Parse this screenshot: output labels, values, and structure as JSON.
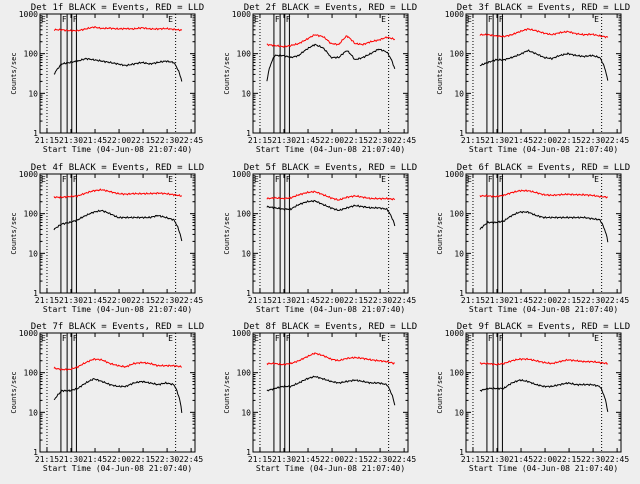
{
  "colors": {
    "background": "#eeeeee",
    "events": "#000000",
    "lld": "#ff0000",
    "axes": "#000000"
  },
  "chart_data": {
    "type": "line",
    "scale": "log",
    "ylim": [
      1,
      1000
    ],
    "y_ticks": [
      "1",
      "10",
      "100",
      "1000"
    ],
    "ylabel": "Counts/sec",
    "xlabel": "Start Time (04-Jun-08 21:07:40)",
    "x_ticks": [
      "21:15",
      "21:30",
      "21:45",
      "22:00",
      "22:15",
      "22:30",
      "22:45"
    ],
    "panels": [
      {
        "title": "Det 1f BLACK = Events, RED = LLD",
        "markers": [
          "E",
          "F",
          "F",
          "E"
        ],
        "lld": {
          "values": [
            400,
            400,
            380,
            380,
            420,
            470,
            430,
            440,
            420,
            430,
            420,
            450,
            420,
            420,
            430,
            410,
            390
          ]
        },
        "events": {
          "values": [
            30,
            55,
            60,
            65,
            75,
            70,
            65,
            60,
            55,
            50,
            55,
            60,
            55,
            60,
            65,
            60,
            20
          ]
        }
      },
      {
        "title": "Det 2f BLACK = Events, RED = LLD",
        "markers": [
          "E",
          "F",
          "F",
          "E"
        ],
        "lld": {
          "values": [
            170,
            160,
            150,
            160,
            180,
            230,
            300,
            270,
            180,
            170,
            280,
            180,
            170,
            200,
            220,
            260,
            230
          ]
        },
        "events": {
          "values": [
            20,
            90,
            90,
            80,
            90,
            130,
            170,
            140,
            80,
            80,
            120,
            70,
            80,
            100,
            130,
            110,
            40
          ]
        }
      },
      {
        "title": "Det 3f BLACK = Events, RED = LLD",
        "markers": [
          "E",
          "F",
          "F",
          "E"
        ],
        "lld": {
          "values": [
            300,
            300,
            280,
            270,
            300,
            360,
            420,
            380,
            330,
            300,
            340,
            360,
            320,
            300,
            310,
            280,
            260
          ]
        },
        "events": {
          "values": [
            50,
            60,
            70,
            70,
            80,
            95,
            120,
            100,
            80,
            75,
            90,
            100,
            90,
            85,
            90,
            80,
            20
          ]
        }
      },
      {
        "title": "Det 4f BLACK = Events, RED = LLD",
        "markers": [
          "E",
          "F",
          "F",
          "E"
        ],
        "lld": {
          "values": [
            260,
            260,
            270,
            280,
            330,
            380,
            400,
            360,
            320,
            310,
            320,
            320,
            320,
            330,
            320,
            300,
            280
          ]
        },
        "events": {
          "values": [
            40,
            55,
            60,
            70,
            90,
            110,
            120,
            100,
            80,
            80,
            80,
            80,
            80,
            90,
            80,
            70,
            20
          ]
        }
      },
      {
        "title": "Det 5f BLACK = Events, RED = LLD",
        "markers": [
          "E",
          "F",
          "F",
          "E"
        ],
        "lld": {
          "values": [
            240,
            250,
            240,
            250,
            300,
            340,
            360,
            300,
            250,
            220,
            260,
            280,
            260,
            240,
            240,
            240,
            230
          ]
        },
        "events": {
          "values": [
            150,
            140,
            130,
            130,
            170,
            200,
            210,
            170,
            140,
            120,
            140,
            160,
            150,
            140,
            140,
            130,
            50
          ]
        }
      },
      {
        "title": "Det 6f BLACK = Events, RED = LLD",
        "markers": [
          "E",
          "F",
          "F",
          "E"
        ],
        "lld": {
          "values": [
            280,
            280,
            270,
            290,
            340,
            380,
            380,
            340,
            300,
            290,
            300,
            310,
            300,
            300,
            290,
            270,
            260
          ]
        },
        "events": {
          "values": [
            40,
            60,
            60,
            65,
            90,
            110,
            110,
            90,
            80,
            80,
            80,
            80,
            80,
            80,
            75,
            70,
            20
          ]
        }
      },
      {
        "title": "Det 7f BLACK = Events, RED = LLD",
        "markers": [
          "E",
          "F",
          "F",
          "E"
        ],
        "lld": {
          "values": [
            130,
            120,
            120,
            140,
            180,
            220,
            210,
            170,
            150,
            140,
            170,
            180,
            170,
            150,
            150,
            150,
            140
          ]
        },
        "events": {
          "values": [
            20,
            35,
            35,
            40,
            55,
            70,
            60,
            50,
            45,
            45,
            55,
            60,
            55,
            50,
            55,
            50,
            10
          ]
        }
      },
      {
        "title": "Det 8f BLACK = Events, RED = LLD",
        "markers": [
          "E",
          "F",
          "F",
          "E"
        ],
        "lld": {
          "values": [
            170,
            170,
            160,
            170,
            200,
            250,
            310,
            270,
            220,
            200,
            230,
            240,
            230,
            210,
            200,
            190,
            170
          ]
        },
        "events": {
          "values": [
            35,
            40,
            45,
            45,
            55,
            70,
            80,
            70,
            60,
            55,
            60,
            65,
            60,
            55,
            55,
            50,
            15
          ]
        }
      },
      {
        "title": "Det 9f BLACK = Events, RED = LLD",
        "markers": [
          "E",
          "F",
          "F",
          "E"
        ],
        "lld": {
          "values": [
            170,
            170,
            160,
            170,
            200,
            220,
            220,
            200,
            180,
            170,
            190,
            210,
            200,
            190,
            190,
            180,
            170
          ]
        },
        "events": {
          "values": [
            35,
            40,
            40,
            40,
            55,
            65,
            60,
            50,
            45,
            45,
            50,
            55,
            50,
            50,
            50,
            45,
            10
          ]
        }
      }
    ]
  }
}
